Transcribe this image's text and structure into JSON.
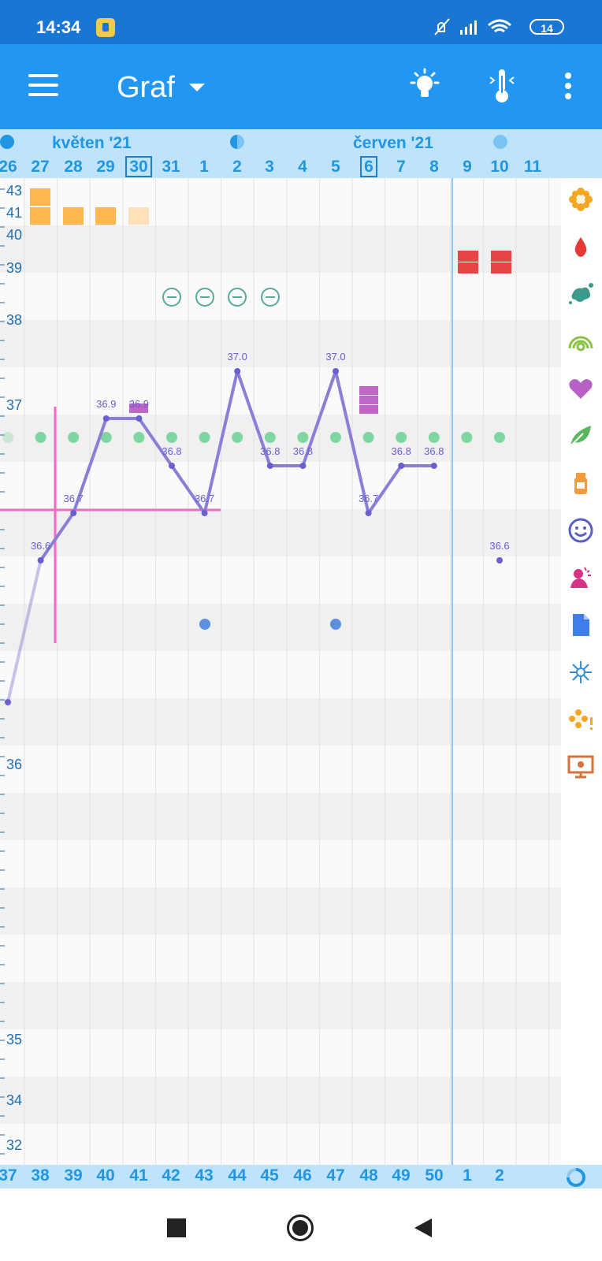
{
  "status_bar": {
    "time": "14:34",
    "battery": "14"
  },
  "app_bar": {
    "title": "Graf"
  },
  "header": {
    "month_1": "květen '21",
    "month_2": "červen '21",
    "days": [
      "26",
      "27",
      "28",
      "29",
      "30",
      "31",
      "1",
      "2",
      "3",
      "4",
      "5",
      "6",
      "7",
      "8",
      "9",
      "10",
      "11"
    ]
  },
  "footer": {
    "cycle_days": [
      "37",
      "38",
      "39",
      "40",
      "41",
      "42",
      "43",
      "44",
      "45",
      "46",
      "47",
      "48",
      "49",
      "50",
      "1",
      "2"
    ]
  },
  "chart_data": {
    "type": "line",
    "y_axis_labels": [
      "43",
      "41",
      "40",
      "39",
      "38",
      "37",
      "36",
      "35",
      "34",
      "32"
    ],
    "temperature_labels": [
      "36.6",
      "36.7",
      "36.9",
      "36.9",
      "36.8",
      "36.7",
      "37.0",
      "36.8",
      "36.8",
      "37.0",
      "36.7",
      "36.8",
      "36.8",
      "36.6"
    ],
    "temperature_points": [
      {
        "day": "26",
        "value": 36.3
      },
      {
        "day": "27",
        "value": 36.6
      },
      {
        "day": "28",
        "value": 36.7
      },
      {
        "day": "29",
        "value": 36.9
      },
      {
        "day": "30",
        "value": 36.9
      },
      {
        "day": "31",
        "value": 36.8
      },
      {
        "day": "1",
        "value": 36.7
      },
      {
        "day": "2",
        "value": 37.0
      },
      {
        "day": "3",
        "value": 36.8
      },
      {
        "day": "4",
        "value": 36.8
      },
      {
        "day": "5",
        "value": 37.0
      },
      {
        "day": "6",
        "value": 36.7
      },
      {
        "day": "7",
        "value": 36.8
      },
      {
        "day": "8",
        "value": 36.8
      },
      {
        "day": "10",
        "value": 36.6
      }
    ],
    "colors": {
      "line": "#8a7fd6",
      "cover_line": "#f06ac8",
      "fertile_dots": "#7ed6a0",
      "menstruation": "#e84545",
      "cervical_mucus": "#ffb84d",
      "marker_purple": "#c066c6",
      "negative_test": "#5aa99a",
      "blue_dot": "#5c8fe0"
    }
  },
  "side_icons": [
    "flower-icon",
    "drop-icon",
    "splash-icon",
    "rings-icon",
    "heart-icon",
    "leaf-icon",
    "bottle-icon",
    "smiley-icon",
    "person-icon",
    "document-icon",
    "sparkle-icon",
    "flower-alert-icon",
    "monitor-icon"
  ]
}
